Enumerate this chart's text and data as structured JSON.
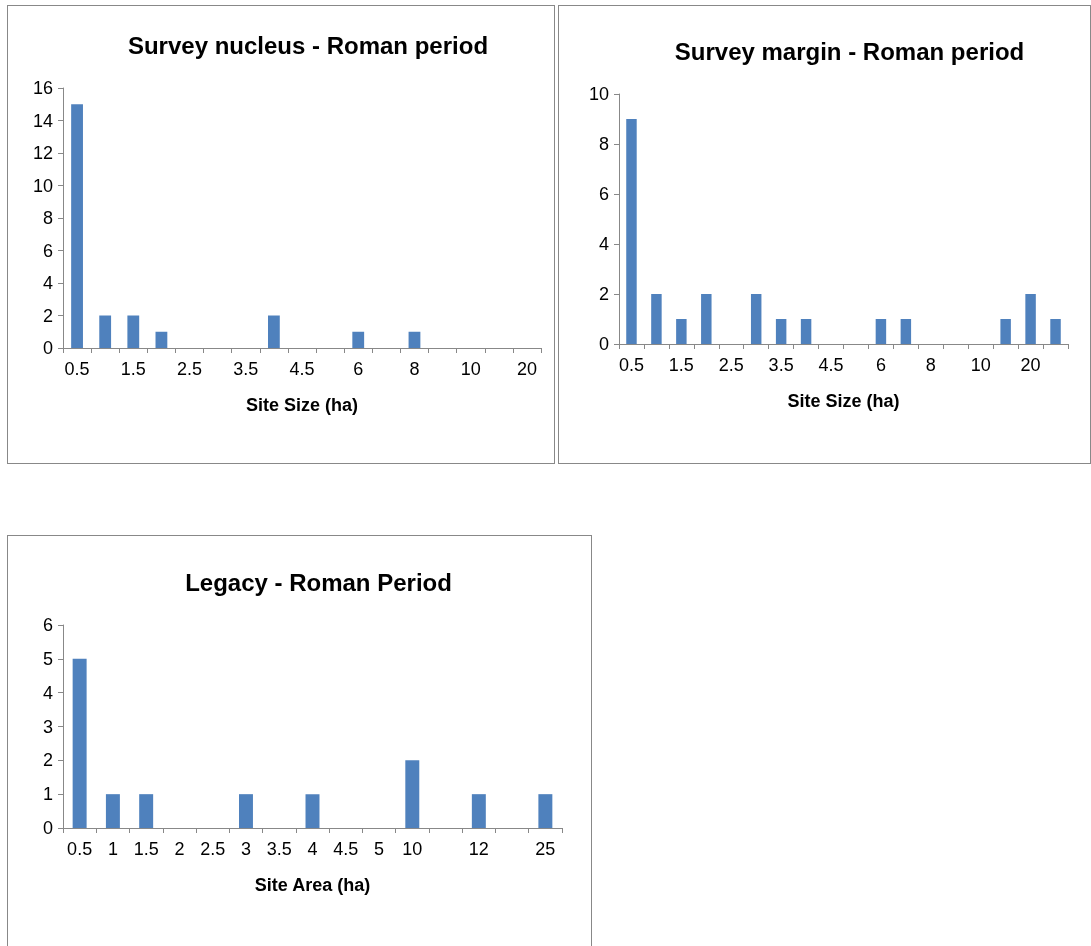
{
  "chart_data": [
    {
      "type": "bar",
      "title": "Survey nucleus - Roman period",
      "xlabel": "Site Size (ha)",
      "categories": [
        "0.5",
        null,
        "1.5",
        null,
        "2.5",
        null,
        "3.5",
        null,
        "4.5",
        null,
        "6",
        null,
        "8",
        null,
        "10",
        null,
        "20"
      ],
      "values": [
        15,
        2,
        2,
        1,
        0,
        0,
        0,
        2,
        0,
        0,
        1,
        0,
        1,
        0,
        0,
        0,
        0
      ],
      "color": "#4f81bd",
      "ylim": [
        0,
        16
      ],
      "yticks": [
        0,
        2,
        4,
        6,
        8,
        10,
        12,
        14,
        16
      ]
    },
    {
      "type": "bar",
      "title": "Survey margin - Roman period",
      "xlabel": "Site Size (ha)",
      "categories": [
        "0.5",
        null,
        "1.5",
        null,
        "2.5",
        null,
        "3.5",
        null,
        "4.5",
        null,
        "6",
        null,
        "8",
        null,
        "10",
        null,
        "20",
        null
      ],
      "values": [
        9,
        2,
        1,
        2,
        0,
        2,
        1,
        1,
        0,
        0,
        1,
        1,
        0,
        0,
        0,
        1,
        2,
        1
      ],
      "color": "#4f81bd",
      "ylim": [
        0,
        10
      ],
      "yticks": [
        0,
        2,
        4,
        6,
        8,
        10
      ]
    },
    {
      "type": "bar",
      "title": "Legacy - Roman Period",
      "xlabel": "Site Area (ha)",
      "categories": [
        "0.5",
        "1",
        "1.5",
        "2",
        "2.5",
        "3",
        "3.5",
        "4",
        "4.5",
        "5",
        "10",
        null,
        "12",
        null,
        "25"
      ],
      "values": [
        5,
        1,
        1,
        0,
        0,
        1,
        0,
        1,
        0,
        0,
        2,
        0,
        1,
        0,
        1
      ],
      "color": "#4f81bd",
      "ylim": [
        0,
        6
      ],
      "yticks": [
        0,
        1,
        2,
        3,
        4,
        5,
        6
      ]
    }
  ]
}
